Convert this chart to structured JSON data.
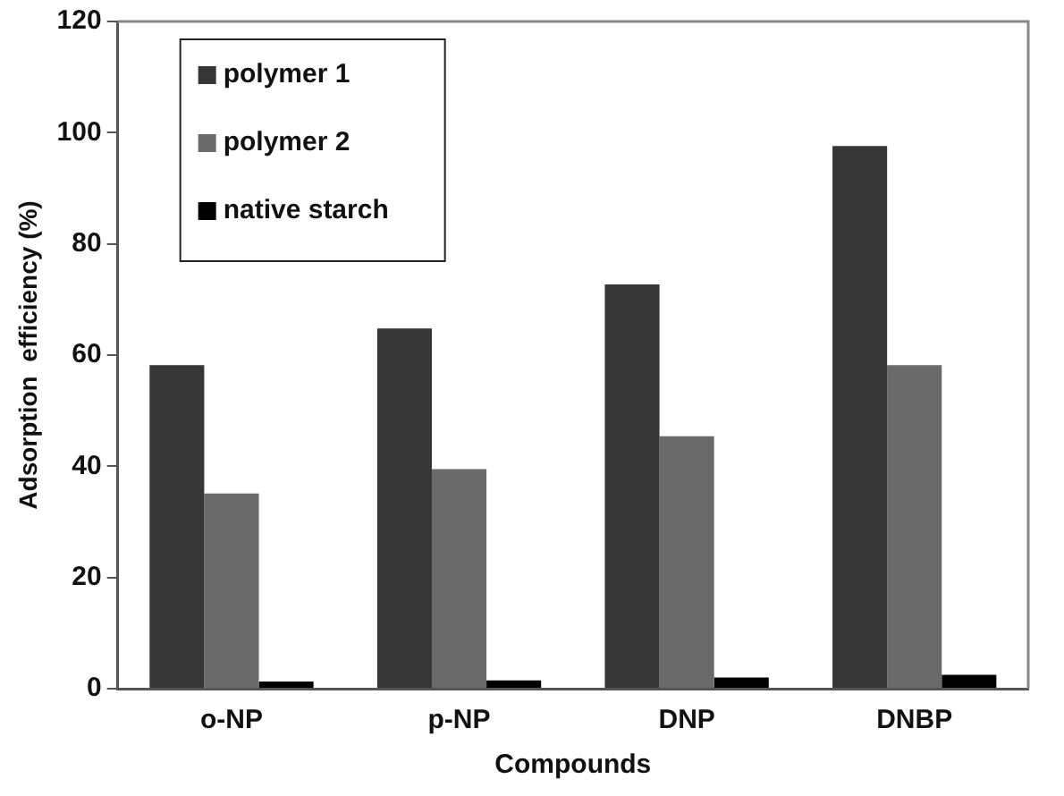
{
  "chart_data": {
    "type": "bar",
    "xlabel": "Compounds",
    "ylabel": "Adsorption  efficiency (%)",
    "categories": [
      "o-NP",
      "p-NP",
      "DNP",
      "DNBP"
    ],
    "series": [
      {
        "name": "polymer 1",
        "color": "#363636",
        "values": [
          58.2,
          64.8,
          72.7,
          97.6
        ]
      },
      {
        "name": "polymer 2",
        "color": "#6a6a6a",
        "values": [
          35.1,
          39.5,
          45.4,
          58.2
        ]
      },
      {
        "name": "native starch",
        "color": "#000000",
        "values": [
          1.3,
          1.5,
          2.0,
          2.5
        ]
      }
    ],
    "ylim": [
      0,
      120
    ],
    "yticks": [
      0,
      20,
      40,
      60,
      80,
      100,
      120
    ],
    "grid": false,
    "legend": "top left"
  }
}
